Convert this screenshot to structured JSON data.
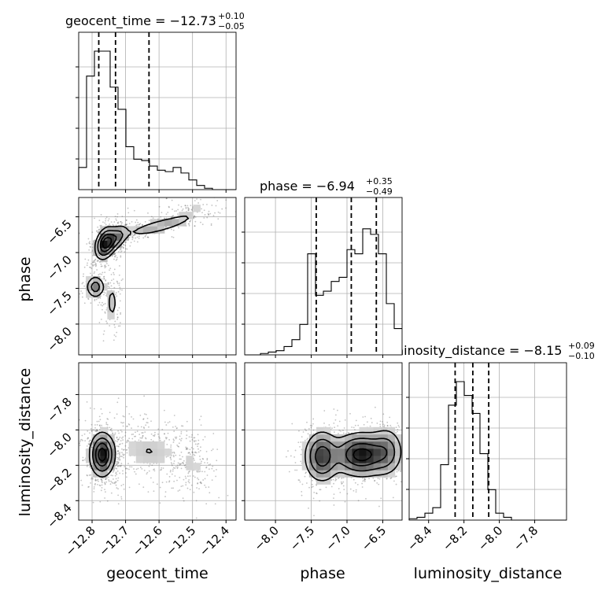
{
  "chart_data": {
    "type": "corner",
    "parameters": [
      "geocent_time",
      "phase",
      "luminosity_distance"
    ],
    "titles": [
      {
        "param": "geocent_time",
        "prefix": "geocent_time = ",
        "median": "−12.73",
        "plus": "+0.10",
        "minus": "−0.05"
      },
      {
        "param": "phase",
        "prefix": "phase = ",
        "median": "−6.94",
        "plus": "+0.35",
        "minus": "−0.49"
      },
      {
        "param": "luminosity_distance",
        "prefix": "luminosity_distance = ",
        "median": "−8.15",
        "plus": "+0.09",
        "minus": "−0.10"
      }
    ],
    "axes": {
      "geocent_time": {
        "range": [
          -12.84,
          -12.37
        ],
        "ticks": [
          -12.8,
          -12.7,
          -12.6,
          -12.5,
          -12.4
        ],
        "tick_labels": [
          "−12.8",
          "−12.7",
          "−12.6",
          "−12.5",
          "−12.4"
        ]
      },
      "phase": {
        "range": [
          -8.43,
          -6.23
        ],
        "ticks": [
          -8.0,
          -7.5,
          -7.0,
          -6.5
        ],
        "tick_labels": [
          "−8.0",
          "−7.5",
          "−7.0",
          "−6.5"
        ]
      },
      "luminosity_distance": {
        "range": [
          -8.51,
          -7.62
        ],
        "ticks": [
          -8.4,
          -8.2,
          -8.0,
          -7.8
        ],
        "tick_labels": [
          "−8.4",
          "−8.2",
          "−8.0",
          "−7.8"
        ]
      }
    },
    "histograms": {
      "geocent_time": {
        "bin_edges": [
          -12.84,
          -12.8165,
          -12.793,
          -12.7695,
          -12.746,
          -12.7225,
          -12.699,
          -12.6755,
          -12.652,
          -12.6285,
          -12.605,
          -12.5815,
          -12.558,
          -12.5345,
          -12.511,
          -12.4875,
          -12.464,
          -12.4405,
          -12.417,
          -12.3935,
          -12.37
        ],
        "counts": [
          0.16,
          0.82,
          1.0,
          1.0,
          0.74,
          0.58,
          0.31,
          0.22,
          0.21,
          0.17,
          0.14,
          0.13,
          0.16,
          0.12,
          0.07,
          0.03,
          0.01,
          0.0,
          0.0,
          0.0
        ],
        "quantiles": [
          -12.78,
          -12.73,
          -12.63
        ]
      },
      "phase": {
        "bin_edges": [
          -8.43,
          -8.32,
          -8.21,
          -8.1,
          -7.99,
          -7.88,
          -7.77,
          -7.66,
          -7.55,
          -7.44,
          -7.33,
          -7.22,
          -7.11,
          -7.0,
          -6.89,
          -6.78,
          -6.67,
          -6.56,
          -6.45,
          -6.34,
          -6.23
        ],
        "counts": [
          0.0,
          0.0,
          0.01,
          0.02,
          0.03,
          0.06,
          0.11,
          0.22,
          0.73,
          0.43,
          0.46,
          0.53,
          0.56,
          0.76,
          0.73,
          0.91,
          0.87,
          0.73,
          0.37,
          0.19
        ],
        "quantiles": [
          -7.43,
          -6.94,
          -6.59
        ]
      },
      "luminosity_distance": {
        "bin_edges": [
          -8.51,
          -8.4655,
          -8.421,
          -8.3765,
          -8.332,
          -8.2875,
          -8.243,
          -8.1985,
          -8.154,
          -8.1095,
          -8.065,
          -8.0205,
          -7.976,
          -7.9315,
          -7.887,
          -7.8425,
          -7.798,
          -7.7535,
          -7.709,
          -7.6645,
          -7.62
        ],
        "counts": [
          0.01,
          0.02,
          0.05,
          0.09,
          0.4,
          0.83,
          1.0,
          0.9,
          0.77,
          0.48,
          0.22,
          0.05,
          0.02,
          0.0,
          0.0,
          0.0,
          0.0,
          0.0,
          0.0,
          0.0
        ],
        "quantiles": [
          -8.25,
          -8.15,
          -8.06
        ]
      }
    },
    "scatter_2d": [
      {
        "x": "geocent_time",
        "y": "phase",
        "modes": [
          {
            "x": -12.76,
            "y": -6.87,
            "sx": 0.015,
            "sy": 0.11,
            "w": 0.35,
            "rho": 0.3
          },
          {
            "x": -12.79,
            "y": -7.48,
            "sx": 0.014,
            "sy": 0.08,
            "w": 0.12,
            "rho": 0.0
          },
          {
            "x": -12.73,
            "y": -6.8,
            "sx": 0.02,
            "sy": 0.1,
            "w": 0.2,
            "rho": 0.5
          },
          {
            "x": -12.6,
            "y": -6.63,
            "sx": 0.055,
            "sy": 0.08,
            "w": 0.18,
            "rho": 0.8
          },
          {
            "x": -12.74,
            "y": -7.7,
            "sx": 0.012,
            "sy": 0.18,
            "w": 0.08,
            "rho": 0.0
          },
          {
            "x": -12.5,
            "y": -6.4,
            "sx": 0.04,
            "sy": 0.1,
            "w": 0.07,
            "rho": 0.5
          }
        ]
      },
      {
        "x": "geocent_time",
        "y": "luminosity_distance",
        "modes": [
          {
            "x": -12.77,
            "y": -8.14,
            "sx": 0.018,
            "sy": 0.06,
            "w": 0.6,
            "rho": 0.0
          },
          {
            "x": -12.63,
            "y": -8.12,
            "sx": 0.06,
            "sy": 0.08,
            "w": 0.3,
            "rho": -0.2
          },
          {
            "x": -12.5,
            "y": -8.2,
            "sx": 0.03,
            "sy": 0.08,
            "w": 0.1,
            "rho": -0.3
          }
        ]
      },
      {
        "x": "phase",
        "y": "luminosity_distance",
        "modes": [
          {
            "x": -6.8,
            "y": -8.14,
            "sx": 0.2,
            "sy": 0.06,
            "w": 0.55,
            "rho": 0.0
          },
          {
            "x": -7.35,
            "y": -8.15,
            "sx": 0.12,
            "sy": 0.07,
            "w": 0.3,
            "rho": 0.0
          },
          {
            "x": -6.45,
            "y": -8.12,
            "sx": 0.12,
            "sy": 0.07,
            "w": 0.15,
            "rho": 0.0
          }
        ]
      }
    ],
    "grid": true,
    "colors": {
      "line": "#000000",
      "grid": "#b0b0b0",
      "points": "#555555"
    }
  }
}
